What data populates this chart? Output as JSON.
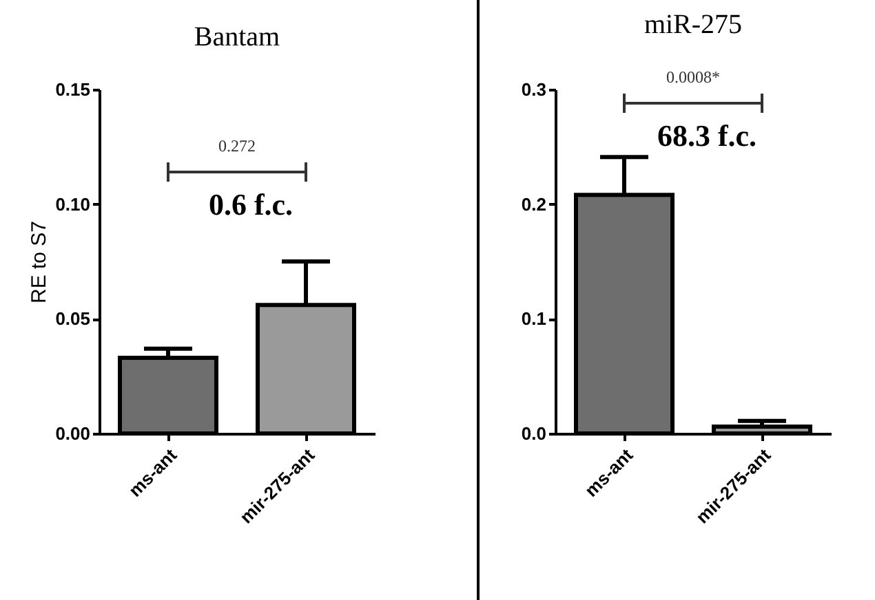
{
  "chart_data": [
    {
      "type": "bar",
      "title": "Bantam",
      "ylabel": "RE to S7",
      "categories": [
        "ms-ant",
        "mir-275-ant"
      ],
      "values": [
        0.033,
        0.056
      ],
      "colors": [
        "#6e6e6e",
        "#9a9a9a"
      ],
      "errors": [
        [
          0.033,
          0.037
        ],
        [
          0.056,
          0.075
        ]
      ],
      "ylim": [
        0,
        0.15
      ],
      "yticks": [
        {
          "value": 0,
          "label": "0.00"
        },
        {
          "value": 0.05,
          "label": "0.05"
        },
        {
          "value": 0.1,
          "label": "0.10"
        },
        {
          "value": 0.15,
          "label": "0.15"
        }
      ],
      "annotations": [
        "0.272",
        "0.6 f.c."
      ]
    },
    {
      "type": "bar",
      "title": "miR-275",
      "categories": [
        "ms-ant",
        "mir-275-ant"
      ],
      "values": [
        0.208,
        0.006
      ],
      "colors": [
        "#6e6e6e",
        "#9a9a9a"
      ],
      "errors": [
        [
          0.208,
          0.241
        ],
        [
          0.006,
          0.011
        ]
      ],
      "ylim": [
        0,
        0.3
      ],
      "yticks": [
        {
          "value": 0,
          "label": "0.0"
        },
        {
          "value": 0.1,
          "label": "0.1"
        },
        {
          "value": 0.2,
          "label": "0.2"
        },
        {
          "value": 0.3,
          "label": "0.3"
        }
      ],
      "annotations": [
        "0.0008*",
        "68.3 f.c."
      ]
    }
  ]
}
